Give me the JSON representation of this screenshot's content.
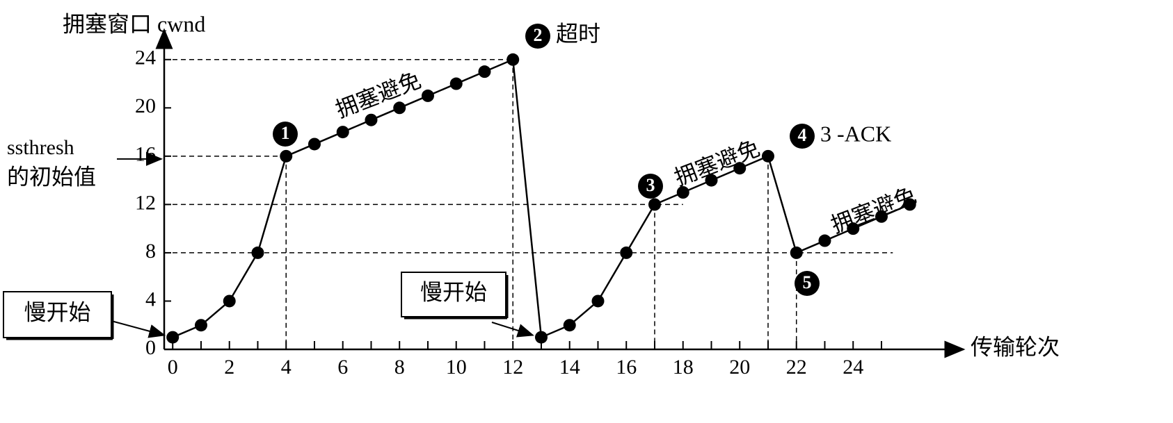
{
  "chart_data": {
    "type": "line",
    "title": "拥塞窗口 cwnd",
    "x_label": "传输轮次",
    "x": [
      0,
      1,
      2,
      3,
      4,
      5,
      6,
      7,
      8,
      9,
      10,
      11,
      12,
      13,
      14,
      15,
      16,
      17,
      18,
      19,
      20,
      21,
      22,
      23,
      24,
      25,
      26
    ],
    "series": [
      {
        "color": "#000000",
        "values": [
          1,
          2,
          4,
          8,
          16,
          17,
          18,
          19,
          20,
          21,
          22,
          23,
          24,
          1,
          2,
          4,
          8,
          12,
          13,
          14,
          15,
          16,
          8,
          9,
          10,
          11,
          12
        ]
      }
    ],
    "xlim": [
      -0.3,
      27.7
    ],
    "ylim": [
      0,
      26
    ],
    "xticks": [
      0,
      2,
      4,
      6,
      8,
      10,
      12,
      14,
      16,
      18,
      20,
      22,
      24
    ],
    "xticks_minor": [
      1,
      3,
      5,
      7,
      9,
      11,
      13,
      15,
      17,
      19,
      21,
      23,
      25
    ],
    "yticks": [
      0,
      4,
      8,
      12,
      16,
      20,
      24
    ],
    "ssthresh_label": [
      "ssthresh",
      "的初始值"
    ],
    "phase_labels": [
      "慢开始",
      "慢开始",
      "拥塞避免",
      "拥塞避免",
      "拥塞避免"
    ],
    "events": [
      {
        "marker": "1"
      },
      {
        "marker": "2",
        "text": "超时"
      },
      {
        "marker": "3"
      },
      {
        "marker": "4",
        "text": "3 -ACK"
      },
      {
        "marker": "5"
      }
    ]
  }
}
